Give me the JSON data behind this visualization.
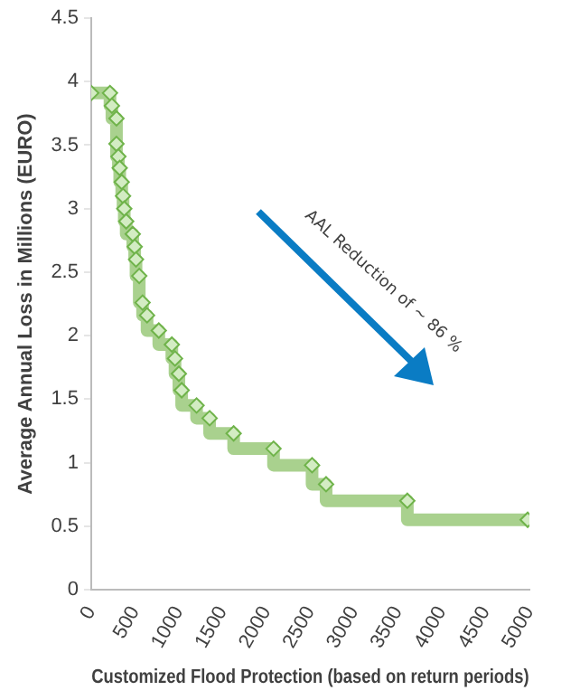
{
  "chart_data": {
    "type": "step",
    "xlabel": "Customized Flood Protection (based on return periods)",
    "ylabel": "Average Annual Loss in Millions (EURO)",
    "x": [
      0,
      214,
      236,
      288,
      288,
      310,
      325,
      348,
      363,
      377,
      399,
      474,
      496,
      511,
      548,
      586,
      637,
      771,
      920,
      956,
      1000,
      1032,
      1202,
      1351,
      1625,
      2080,
      2520,
      2680,
      3607,
      4980
    ],
    "values": [
      3.91,
      3.91,
      3.81,
      3.71,
      3.51,
      3.41,
      3.32,
      3.21,
      3.1,
      3.0,
      2.9,
      2.8,
      2.7,
      2.6,
      2.47,
      2.26,
      2.16,
      2.04,
      1.93,
      1.82,
      1.7,
      1.57,
      1.45,
      1.35,
      1.23,
      1.11,
      0.98,
      0.83,
      0.7,
      0.55
    ],
    "color": "#a9d18e",
    "marker": "diamond",
    "grid": false,
    "legend": false,
    "xlim": [
      0,
      5000
    ],
    "xticks": [
      0,
      500,
      1000,
      1500,
      2000,
      2500,
      3000,
      3500,
      4000,
      4500,
      5000
    ],
    "ylim": [
      0,
      4.5
    ],
    "yticks": [
      0,
      0.5,
      1,
      1.5,
      2,
      2.5,
      3,
      3.5,
      4,
      4.5
    ],
    "annotations": [
      "AAL Reduction of ~ 86 %"
    ]
  }
}
